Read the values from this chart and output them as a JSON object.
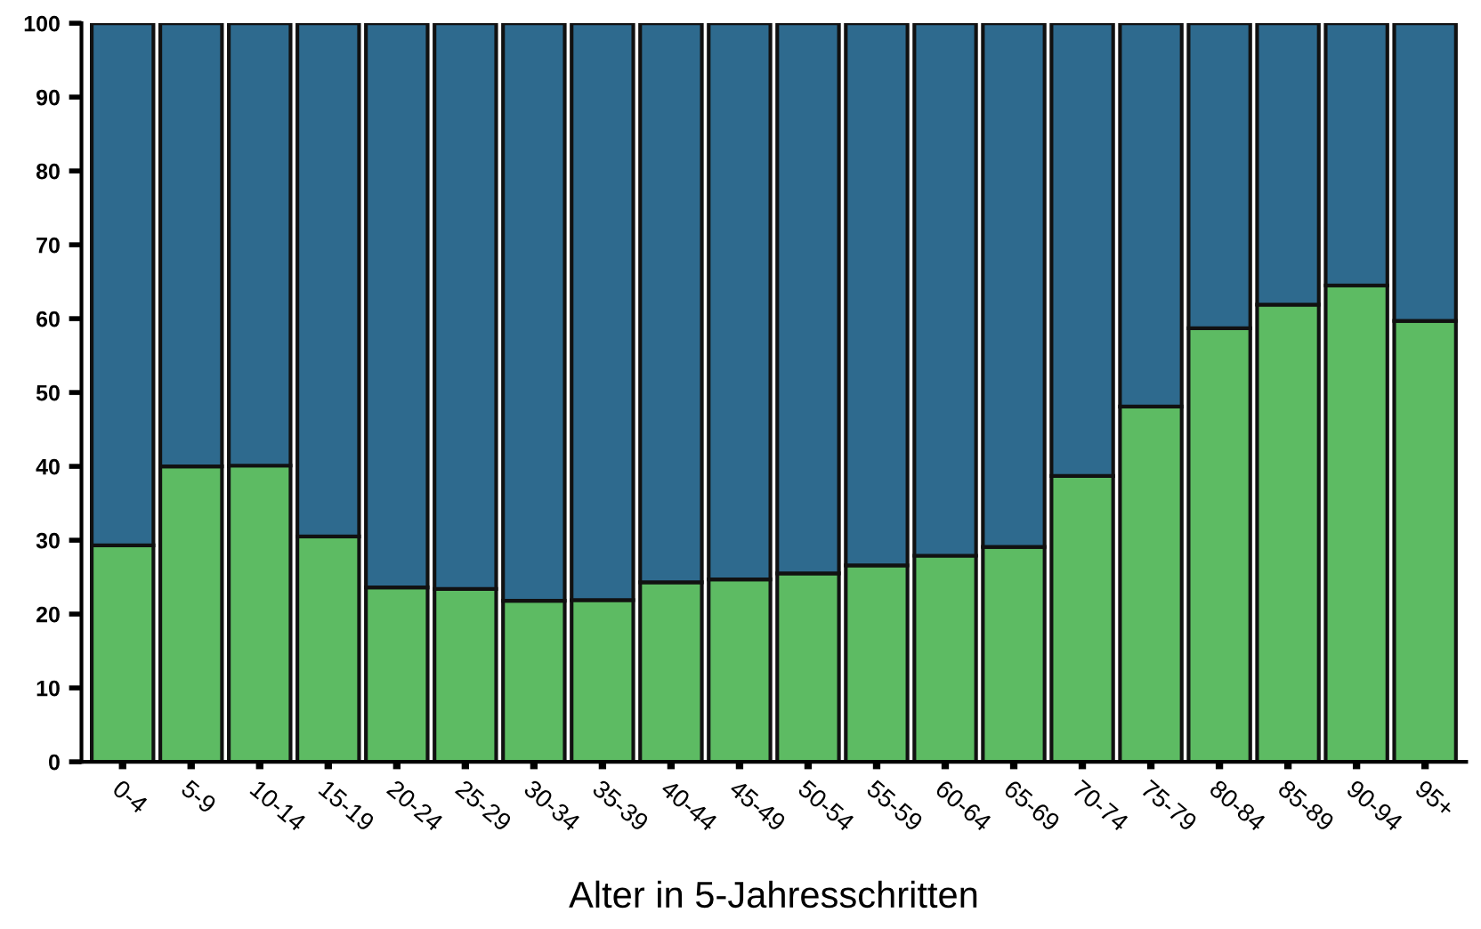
{
  "chart_data": {
    "type": "bar",
    "stacked": true,
    "xlabel": "Alter in 5-Jahresschritten",
    "categories": [
      "0-4",
      "5-9",
      "10-14",
      "15-19",
      "20-24",
      "25-29",
      "30-34",
      "35-39",
      "40-44",
      "45-49",
      "50-54",
      "55-59",
      "60-64",
      "65-69",
      "70-74",
      "75-79",
      "80-84",
      "85-89",
      "90-94",
      "95+"
    ],
    "series": [
      {
        "color": "#5dbb63",
        "values": [
          29.3,
          40.0,
          40.1,
          30.5,
          23.6,
          23.4,
          21.8,
          21.9,
          24.3,
          24.7,
          25.5,
          26.6,
          27.9,
          29.1,
          38.7,
          48.1,
          58.7,
          61.9,
          64.5,
          59.7
        ]
      },
      {
        "color": "#2e6a8e",
        "values": [
          70.7,
          60.0,
          59.9,
          69.5,
          76.4,
          76.6,
          78.2,
          78.1,
          75.7,
          75.3,
          74.5,
          73.4,
          72.1,
          70.9,
          61.3,
          51.9,
          41.3,
          38.1,
          35.5,
          40.3
        ]
      }
    ],
    "ylim": [
      0,
      100
    ],
    "yticks": [
      0,
      10,
      20,
      30,
      40,
      50,
      60,
      70,
      80,
      90,
      100
    ]
  }
}
